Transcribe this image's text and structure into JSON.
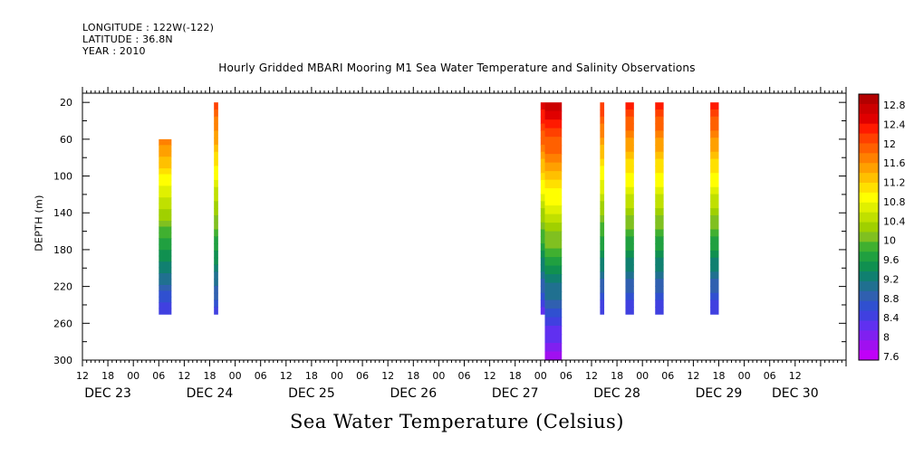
{
  "header": {
    "longitude": "LONGITUDE : 122W(-122)",
    "latitude": "LATITUDE : 36.8N",
    "year": "YEAR : 2010"
  },
  "chart_data": {
    "type": "heatmap",
    "title": "Hourly Gridded MBARI Mooring M1 Sea Water Temperature and Salinity Observations",
    "xlabel": "Sea Water Temperature (Celsius)",
    "ylabel": "DEPTH (m)",
    "x_hours_range": [
      -12,
      168
    ],
    "x_tick_hours": [
      "12",
      "18",
      "00",
      "06",
      "12",
      "18",
      "00",
      "06",
      "12",
      "18",
      "00",
      "06",
      "12",
      "18",
      "00",
      "06",
      "12",
      "18",
      "00",
      "06",
      "12",
      "18",
      "00",
      "06",
      "12",
      "18",
      "00",
      "06",
      "12"
    ],
    "x_date_labels": [
      {
        "label": "DEC 23",
        "hour": -6
      },
      {
        "label": "DEC 24",
        "hour": 18
      },
      {
        "label": "DEC 25",
        "hour": 42
      },
      {
        "label": "DEC 26",
        "hour": 66
      },
      {
        "label": "DEC 27",
        "hour": 90
      },
      {
        "label": "DEC 28",
        "hour": 114
      },
      {
        "label": "DEC 29",
        "hour": 138
      },
      {
        "label": "DEC 30",
        "hour": 156
      }
    ],
    "y_range": [
      10,
      300
    ],
    "y_ticks": [
      20,
      60,
      100,
      140,
      180,
      220,
      260,
      300
    ],
    "colorbar": {
      "labels": [
        "12.8",
        "12.4",
        "12",
        "11.6",
        "11.2",
        "10.8",
        "10.4",
        "10",
        "9.6",
        "9.2",
        "8.8",
        "8.4",
        "8",
        "7.6"
      ],
      "min": 7.6,
      "max": 13.0,
      "colors": [
        "#b30000",
        "#cc0000",
        "#e00000",
        "#ff1a00",
        "#ff4000",
        "#ff6000",
        "#ff8000",
        "#ffa000",
        "#ffc000",
        "#ffe000",
        "#ffff00",
        "#e0f000",
        "#c0e000",
        "#a0d000",
        "#80c020",
        "#40b030",
        "#20a040",
        "#109050",
        "#108070",
        "#207090",
        "#3060b0",
        "#3050d0",
        "#4040e0",
        "#6030f0",
        "#8020f0",
        "#a010f0",
        "#c000f8"
      ]
    },
    "series": [
      {
        "start_hour": 6,
        "end_hour": 9,
        "depth_top": 60,
        "depth_bottom": 250,
        "temp_top": 11.7,
        "temp_bottom": 8.4
      },
      {
        "start_hour": 19,
        "end_hour": 20,
        "depth_top": 20,
        "depth_bottom": 250,
        "temp_top": 12.1,
        "temp_bottom": 8.5
      },
      {
        "start_hour": 96,
        "end_hour": 97,
        "depth_top": 20,
        "depth_bottom": 250,
        "temp_top": 12.6,
        "temp_bottom": 8.3
      },
      {
        "start_hour": 97,
        "end_hour": 101,
        "depth_top": 20,
        "depth_bottom": 300,
        "temp_top": 12.7,
        "temp_bottom": 7.8
      },
      {
        "start_hour": 110,
        "end_hour": 111,
        "depth_top": 20,
        "depth_bottom": 250,
        "temp_top": 12.2,
        "temp_bottom": 8.4
      },
      {
        "start_hour": 116,
        "end_hour": 118,
        "depth_top": 20,
        "depth_bottom": 250,
        "temp_top": 12.3,
        "temp_bottom": 8.4
      },
      {
        "start_hour": 123,
        "end_hour": 125,
        "depth_top": 20,
        "depth_bottom": 250,
        "temp_top": 12.3,
        "temp_bottom": 8.4
      },
      {
        "start_hour": 136,
        "end_hour": 138,
        "depth_top": 20,
        "depth_bottom": 250,
        "temp_top": 12.3,
        "temp_bottom": 8.4
      }
    ]
  }
}
